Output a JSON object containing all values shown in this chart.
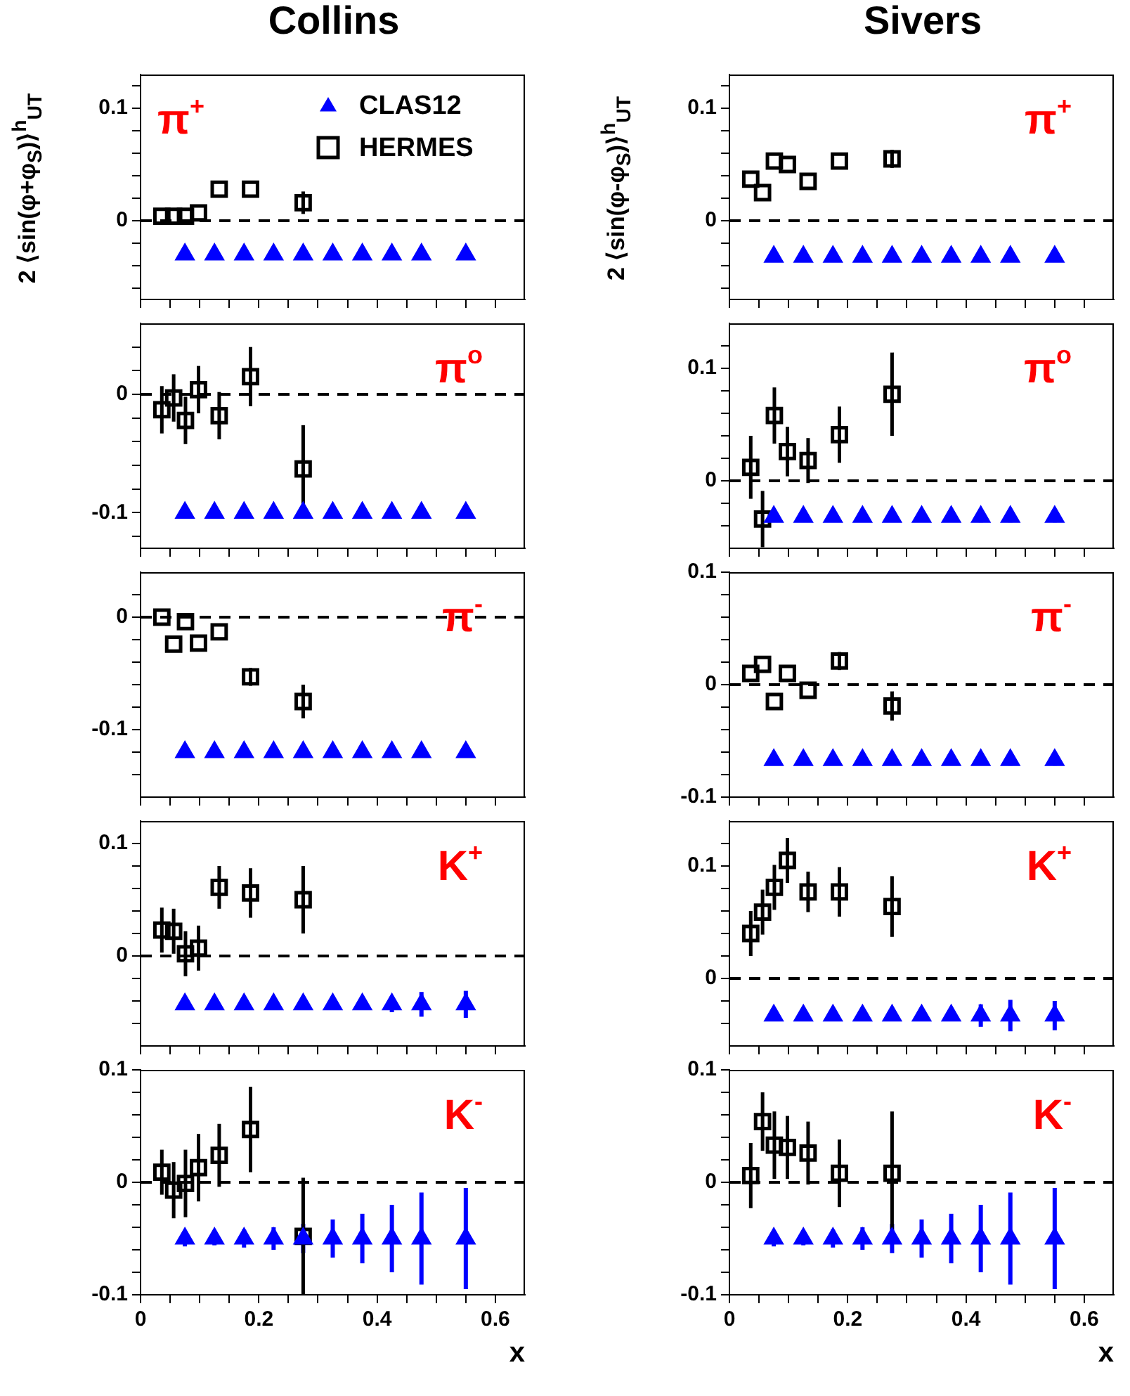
{
  "chart_data": [
    {
      "type": "scatter",
      "title": "Collins",
      "ylabel": "2 ⟨sin(φ+φ$_{S}$)⟩$^{h}$$_{UT}$",
      "legend": "top right",
      "tick_labels": "y",
      "annotations": [
        "π$^{+}$"
      ],
      "xlim": [
        0,
        0.65
      ],
      "xticks": [
        0,
        {
          "value": 0.05,
          "label": null
        },
        {
          "value": 0.1,
          "label": null
        },
        {
          "value": 0.15,
          "label": null
        },
        0.2,
        {
          "value": 0.25,
          "label": null
        },
        {
          "value": 0.3,
          "label": null
        },
        {
          "value": 0.35,
          "label": null
        },
        0.4,
        {
          "value": 0.45,
          "label": null
        },
        {
          "value": 0.5,
          "label": null
        },
        {
          "value": 0.55,
          "label": null
        },
        0.6
      ],
      "ylim": [
        -0.07,
        0.13
      ],
      "yticks": [
        {
          "value": -0.06,
          "label": null
        },
        {
          "value": -0.04,
          "label": null
        },
        {
          "value": -0.02,
          "label": null
        },
        0,
        {
          "value": 0.02,
          "label": null
        },
        {
          "value": 0.04,
          "label": null
        },
        {
          "value": 0.06,
          "label": null
        },
        {
          "value": 0.08,
          "label": null
        },
        0.1,
        {
          "value": 0.12,
          "label": null
        }
      ],
      "ref_lines": [
        {
          "axis": "y",
          "value": 0,
          "line_style": "dashed"
        }
      ],
      "series": [
        {
          "name": "CLAS12",
          "color": "#0000ff",
          "marker": "triangle",
          "x": [
            0.075,
            0.125,
            0.175,
            0.225,
            0.275,
            0.325,
            0.375,
            0.425,
            0.475,
            0.55
          ],
          "values": [
            -0.03,
            -0.03,
            -0.03,
            -0.03,
            -0.03,
            -0.03,
            -0.03,
            -0.03,
            -0.03,
            -0.03
          ]
        },
        {
          "name": "HERMES",
          "color": "#000000",
          "marker": "square",
          "x": [
            0.036,
            0.056,
            0.076,
            0.098,
            0.133,
            0.186,
            0.275
          ],
          "values": [
            0.004,
            0.004,
            0.004,
            0.007,
            0.028,
            0.028,
            0.016
          ],
          "errors": [
            null,
            null,
            null,
            null,
            null,
            null,
            0.01
          ]
        }
      ]
    },
    {
      "type": "scatter",
      "title": "Sivers",
      "ylabel": "2 ⟨sin(φ-φ$_{S}$)⟩$^{h}$$_{UT}$",
      "tick_labels": "y",
      "annotations": [
        "π$^{+}$"
      ],
      "xlim": [
        0,
        0.65
      ],
      "xticks": [
        0,
        {
          "value": 0.05,
          "label": null
        },
        {
          "value": 0.1,
          "label": null
        },
        {
          "value": 0.15,
          "label": null
        },
        0.2,
        {
          "value": 0.25,
          "label": null
        },
        {
          "value": 0.3,
          "label": null
        },
        {
          "value": 0.35,
          "label": null
        },
        0.4,
        {
          "value": 0.45,
          "label": null
        },
        {
          "value": 0.5,
          "label": null
        },
        {
          "value": 0.55,
          "label": null
        },
        0.6
      ],
      "ylim": [
        -0.07,
        0.13
      ],
      "yticks": [
        {
          "value": -0.06,
          "label": null
        },
        {
          "value": -0.04,
          "label": null
        },
        {
          "value": -0.02,
          "label": null
        },
        0,
        {
          "value": 0.02,
          "label": null
        },
        {
          "value": 0.04,
          "label": null
        },
        {
          "value": 0.06,
          "label": null
        },
        {
          "value": 0.08,
          "label": null
        },
        0.1,
        {
          "value": 0.12,
          "label": null
        }
      ],
      "ref_lines": [
        {
          "axis": "y",
          "value": 0,
          "line_style": "dashed"
        }
      ],
      "series": [
        {
          "color": "#0000ff",
          "marker": "triangle",
          "x": [
            0.075,
            0.125,
            0.175,
            0.225,
            0.275,
            0.325,
            0.375,
            0.425,
            0.475,
            0.55
          ],
          "values": [
            -0.032,
            -0.032,
            -0.032,
            -0.032,
            -0.032,
            -0.032,
            -0.032,
            -0.032,
            -0.032,
            -0.032
          ]
        },
        {
          "color": "#000000",
          "marker": "square",
          "x": [
            0.036,
            0.056,
            0.076,
            0.098,
            0.133,
            0.186,
            0.275
          ],
          "values": [
            0.037,
            0.025,
            0.053,
            0.05,
            0.035,
            0.053,
            0.055
          ],
          "errors": [
            null,
            null,
            null,
            null,
            null,
            null,
            0.008
          ]
        }
      ]
    },
    {
      "type": "scatter",
      "tick_labels": "y",
      "annotations": [
        "π$^{o}$"
      ],
      "xlim": [
        0,
        0.65
      ],
      "xticks": [
        0,
        {
          "value": 0.05,
          "label": null
        },
        {
          "value": 0.1,
          "label": null
        },
        {
          "value": 0.15,
          "label": null
        },
        0.2,
        {
          "value": 0.25,
          "label": null
        },
        {
          "value": 0.3,
          "label": null
        },
        {
          "value": 0.35,
          "label": null
        },
        0.4,
        {
          "value": 0.45,
          "label": null
        },
        {
          "value": 0.5,
          "label": null
        },
        {
          "value": 0.55,
          "label": null
        },
        0.6
      ],
      "ylim": [
        -0.13,
        0.06
      ],
      "yticks": [
        {
          "value": -0.12,
          "label": null
        },
        -0.1,
        {
          "value": -0.08,
          "label": null
        },
        {
          "value": -0.06,
          "label": null
        },
        {
          "value": -0.04,
          "label": null
        },
        {
          "value": -0.02,
          "label": null
        },
        0,
        {
          "value": 0.02,
          "label": null
        },
        {
          "value": 0.04,
          "label": null
        }
      ],
      "ref_lines": [
        {
          "axis": "y",
          "value": 0,
          "line_style": "dashed"
        }
      ],
      "series": [
        {
          "color": "#0000ff",
          "marker": "triangle",
          "x": [
            0.075,
            0.125,
            0.175,
            0.225,
            0.275,
            0.325,
            0.375,
            0.425,
            0.475,
            0.55
          ],
          "values": [
            -0.1,
            -0.1,
            -0.1,
            -0.1,
            -0.1,
            -0.1,
            -0.1,
            -0.1,
            -0.1,
            -0.1
          ],
          "errors": [
            null,
            null,
            null,
            null,
            null,
            null,
            null,
            0.004,
            0.005,
            0.004
          ]
        },
        {
          "color": "#000000",
          "marker": "square",
          "x": [
            0.036,
            0.056,
            0.076,
            0.098,
            0.133,
            0.186,
            0.275
          ],
          "values": [
            -0.013,
            -0.003,
            -0.022,
            0.004,
            -0.018,
            0.015,
            -0.063
          ],
          "errors": [
            0.02,
            0.02,
            0.02,
            0.02,
            0.02,
            0.025,
            0.037
          ]
        }
      ]
    },
    {
      "type": "scatter",
      "tick_labels": "y",
      "annotations": [
        "π$^{o}$"
      ],
      "xlim": [
        0,
        0.65
      ],
      "xticks": [
        0,
        {
          "value": 0.05,
          "label": null
        },
        {
          "value": 0.1,
          "label": null
        },
        {
          "value": 0.15,
          "label": null
        },
        0.2,
        {
          "value": 0.25,
          "label": null
        },
        {
          "value": 0.3,
          "label": null
        },
        {
          "value": 0.35,
          "label": null
        },
        0.4,
        {
          "value": 0.45,
          "label": null
        },
        {
          "value": 0.5,
          "label": null
        },
        {
          "value": 0.55,
          "label": null
        },
        0.6
      ],
      "ylim": [
        -0.06,
        0.14
      ],
      "yticks": [
        {
          "value": -0.04,
          "label": null
        },
        {
          "value": -0.02,
          "label": null
        },
        0,
        {
          "value": 0.02,
          "label": null
        },
        {
          "value": 0.04,
          "label": null
        },
        {
          "value": 0.06,
          "label": null
        },
        {
          "value": 0.08,
          "label": null
        },
        0.1,
        {
          "value": 0.12,
          "label": null
        }
      ],
      "ref_lines": [
        {
          "axis": "y",
          "value": 0,
          "line_style": "dashed"
        }
      ],
      "series": [
        {
          "color": "#0000ff",
          "marker": "triangle",
          "x": [
            0.075,
            0.125,
            0.175,
            0.225,
            0.275,
            0.325,
            0.375,
            0.425,
            0.475,
            0.55
          ],
          "values": [
            -0.032,
            -0.032,
            -0.032,
            -0.032,
            -0.032,
            -0.032,
            -0.032,
            -0.032,
            -0.032,
            -0.032
          ],
          "errors": [
            null,
            null,
            null,
            null,
            null,
            null,
            null,
            0.005,
            0.005,
            0.005
          ]
        },
        {
          "color": "#000000",
          "marker": "square",
          "x": [
            0.036,
            0.056,
            0.076,
            0.098,
            0.133,
            0.186,
            0.275
          ],
          "values": [
            0.012,
            -0.034,
            0.058,
            0.026,
            0.018,
            0.041,
            0.077
          ],
          "errors": [
            0.028,
            0.025,
            0.025,
            0.022,
            0.02,
            0.025,
            0.037
          ]
        }
      ]
    },
    {
      "type": "scatter",
      "tick_labels": "y",
      "annotations": [
        "π$^{-}$"
      ],
      "xlim": [
        0,
        0.65
      ],
      "xticks": [
        0,
        {
          "value": 0.05,
          "label": null
        },
        {
          "value": 0.1,
          "label": null
        },
        {
          "value": 0.15,
          "label": null
        },
        0.2,
        {
          "value": 0.25,
          "label": null
        },
        {
          "value": 0.3,
          "label": null
        },
        {
          "value": 0.35,
          "label": null
        },
        0.4,
        {
          "value": 0.45,
          "label": null
        },
        {
          "value": 0.5,
          "label": null
        },
        {
          "value": 0.55,
          "label": null
        },
        0.6
      ],
      "ylim": [
        -0.16,
        0.04
      ],
      "yticks": [
        {
          "value": -0.14,
          "label": null
        },
        {
          "value": -0.12,
          "label": null
        },
        -0.1,
        {
          "value": -0.08,
          "label": null
        },
        {
          "value": -0.06,
          "label": null
        },
        {
          "value": -0.04,
          "label": null
        },
        {
          "value": -0.02,
          "label": null
        },
        0,
        {
          "value": 0.02,
          "label": null
        }
      ],
      "ref_lines": [
        {
          "axis": "y",
          "value": 0,
          "line_style": "dashed"
        }
      ],
      "series": [
        {
          "color": "#0000ff",
          "marker": "triangle",
          "x": [
            0.075,
            0.125,
            0.175,
            0.225,
            0.275,
            0.325,
            0.375,
            0.425,
            0.475,
            0.55
          ],
          "values": [
            -0.12,
            -0.12,
            -0.12,
            -0.12,
            -0.12,
            -0.12,
            -0.12,
            -0.12,
            -0.12,
            -0.12
          ],
          "errors": [
            null,
            null,
            null,
            null,
            null,
            null,
            null,
            null,
            0.004,
            null
          ]
        },
        {
          "color": "#000000",
          "marker": "square",
          "x": [
            0.036,
            0.056,
            0.076,
            0.098,
            0.133,
            0.186,
            0.275
          ],
          "values": [
            0,
            -0.024,
            -0.004,
            -0.023,
            -0.013,
            -0.053,
            -0.075
          ],
          "errors": [
            null,
            null,
            null,
            null,
            null,
            0.008,
            0.015
          ]
        }
      ]
    },
    {
      "type": "scatter",
      "tick_labels": "y",
      "annotations": [
        "π$^{-}$"
      ],
      "xlim": [
        0,
        0.65
      ],
      "xticks": [
        0,
        {
          "value": 0.05,
          "label": null
        },
        {
          "value": 0.1,
          "label": null
        },
        {
          "value": 0.15,
          "label": null
        },
        0.2,
        {
          "value": 0.25,
          "label": null
        },
        {
          "value": 0.3,
          "label": null
        },
        {
          "value": 0.35,
          "label": null
        },
        0.4,
        {
          "value": 0.45,
          "label": null
        },
        {
          "value": 0.5,
          "label": null
        },
        {
          "value": 0.55,
          "label": null
        },
        0.6
      ],
      "ylim": [
        -0.1,
        0.1
      ],
      "yticks": [
        -0.1,
        {
          "value": -0.08,
          "label": null
        },
        {
          "value": -0.06,
          "label": null
        },
        {
          "value": -0.04,
          "label": null
        },
        {
          "value": -0.02,
          "label": null
        },
        0,
        {
          "value": 0.02,
          "label": null
        },
        {
          "value": 0.04,
          "label": null
        },
        {
          "value": 0.06,
          "label": null
        },
        {
          "value": 0.08,
          "label": null
        },
        0.1
      ],
      "ref_lines": [
        {
          "axis": "y",
          "value": 0,
          "line_style": "dashed"
        }
      ],
      "series": [
        {
          "color": "#0000ff",
          "marker": "triangle",
          "x": [
            0.075,
            0.125,
            0.175,
            0.225,
            0.275,
            0.325,
            0.375,
            0.425,
            0.475,
            0.55
          ],
          "values": [
            -0.067,
            -0.067,
            -0.067,
            -0.067,
            -0.067,
            -0.067,
            -0.067,
            -0.067,
            -0.067,
            -0.067
          ],
          "errors": [
            null,
            null,
            null,
            null,
            null,
            null,
            null,
            null,
            0.005,
            0.005
          ]
        },
        {
          "color": "#000000",
          "marker": "square",
          "x": [
            0.036,
            0.056,
            0.076,
            0.098,
            0.133,
            0.186,
            0.275
          ],
          "values": [
            0.01,
            0.018,
            -0.015,
            0.01,
            -0.005,
            0.021,
            -0.019
          ],
          "errors": [
            null,
            null,
            null,
            null,
            null,
            0.008,
            0.013
          ]
        }
      ]
    },
    {
      "type": "scatter",
      "tick_labels": "y",
      "annotations": [
        "K$^{+}$"
      ],
      "xlim": [
        0,
        0.65
      ],
      "xticks": [
        0,
        {
          "value": 0.05,
          "label": null
        },
        {
          "value": 0.1,
          "label": null
        },
        {
          "value": 0.15,
          "label": null
        },
        0.2,
        {
          "value": 0.25,
          "label": null
        },
        {
          "value": 0.3,
          "label": null
        },
        {
          "value": 0.35,
          "label": null
        },
        0.4,
        {
          "value": 0.45,
          "label": null
        },
        {
          "value": 0.5,
          "label": null
        },
        {
          "value": 0.55,
          "label": null
        },
        0.6
      ],
      "ylim": [
        -0.08,
        0.12
      ],
      "yticks": [
        {
          "value": -0.06,
          "label": null
        },
        {
          "value": -0.04,
          "label": null
        },
        {
          "value": -0.02,
          "label": null
        },
        0,
        {
          "value": 0.02,
          "label": null
        },
        {
          "value": 0.04,
          "label": null
        },
        {
          "value": 0.06,
          "label": null
        },
        {
          "value": 0.08,
          "label": null
        },
        0.1
      ],
      "ref_lines": [
        {
          "axis": "y",
          "value": 0,
          "line_style": "dashed"
        }
      ],
      "series": [
        {
          "color": "#0000ff",
          "marker": "triangle",
          "x": [
            0.075,
            0.125,
            0.175,
            0.225,
            0.275,
            0.325,
            0.375,
            0.425,
            0.475,
            0.55
          ],
          "values": [
            -0.043,
            -0.043,
            -0.043,
            -0.043,
            -0.043,
            -0.043,
            -0.043,
            -0.043,
            -0.043,
            -0.043
          ],
          "errors": [
            null,
            null,
            null,
            null,
            null,
            null,
            0.004,
            0.007,
            0.011,
            0.012
          ]
        },
        {
          "color": "#000000",
          "marker": "square",
          "x": [
            0.036,
            0.056,
            0.076,
            0.098,
            0.133,
            0.186,
            0.275
          ],
          "values": [
            0.023,
            0.022,
            0.002,
            0.007,
            0.061,
            0.056,
            0.05
          ],
          "errors": [
            0.02,
            0.02,
            0.02,
            0.02,
            0.019,
            0.022,
            0.03
          ]
        }
      ]
    },
    {
      "type": "scatter",
      "tick_labels": "y",
      "annotations": [
        "K$^{+}$"
      ],
      "xlim": [
        0,
        0.65
      ],
      "xticks": [
        0,
        {
          "value": 0.05,
          "label": null
        },
        {
          "value": 0.1,
          "label": null
        },
        {
          "value": 0.15,
          "label": null
        },
        0.2,
        {
          "value": 0.25,
          "label": null
        },
        {
          "value": 0.3,
          "label": null
        },
        {
          "value": 0.35,
          "label": null
        },
        0.4,
        {
          "value": 0.45,
          "label": null
        },
        {
          "value": 0.5,
          "label": null
        },
        {
          "value": 0.55,
          "label": null
        },
        0.6
      ],
      "ylim": [
        -0.06,
        0.14
      ],
      "yticks": [
        {
          "value": -0.04,
          "label": null
        },
        {
          "value": -0.02,
          "label": null
        },
        0,
        {
          "value": 0.02,
          "label": null
        },
        {
          "value": 0.04,
          "label": null
        },
        {
          "value": 0.06,
          "label": null
        },
        {
          "value": 0.08,
          "label": null
        },
        0.1,
        {
          "value": 0.12,
          "label": null
        }
      ],
      "ref_lines": [
        {
          "axis": "y",
          "value": 0,
          "line_style": "dashed"
        }
      ],
      "series": [
        {
          "color": "#0000ff",
          "marker": "triangle",
          "x": [
            0.075,
            0.125,
            0.175,
            0.225,
            0.275,
            0.325,
            0.375,
            0.425,
            0.475,
            0.55
          ],
          "values": [
            -0.033,
            -0.033,
            -0.033,
            -0.033,
            -0.033,
            -0.033,
            -0.033,
            -0.033,
            -0.033,
            -0.033
          ],
          "errors": [
            null,
            null,
            null,
            null,
            null,
            null,
            0.005,
            0.01,
            0.014,
            0.013
          ]
        },
        {
          "color": "#000000",
          "marker": "square",
          "x": [
            0.036,
            0.056,
            0.076,
            0.098,
            0.133,
            0.186,
            0.275
          ],
          "values": [
            0.04,
            0.059,
            0.081,
            0.105,
            0.077,
            0.077,
            0.064
          ],
          "errors": [
            0.02,
            0.02,
            0.02,
            0.02,
            0.018,
            0.022,
            0.027
          ]
        }
      ]
    },
    {
      "type": "scatter",
      "xlabel": "x",
      "annotations": [
        "K$^{-}$"
      ],
      "xlim": [
        0,
        0.65
      ],
      "xticks": [
        0,
        {
          "value": 0.05,
          "label": null
        },
        {
          "value": 0.1,
          "label": null
        },
        {
          "value": 0.15,
          "label": null
        },
        0.2,
        {
          "value": 0.25,
          "label": null
        },
        {
          "value": 0.3,
          "label": null
        },
        {
          "value": 0.35,
          "label": null
        },
        0.4,
        {
          "value": 0.45,
          "label": null
        },
        {
          "value": 0.5,
          "label": null
        },
        {
          "value": 0.55,
          "label": null
        },
        0.6
      ],
      "ylim": [
        -0.1,
        0.1
      ],
      "yticks": [
        -0.1,
        {
          "value": -0.08,
          "label": null
        },
        {
          "value": -0.06,
          "label": null
        },
        {
          "value": -0.04,
          "label": null
        },
        {
          "value": -0.02,
          "label": null
        },
        0,
        {
          "value": 0.02,
          "label": null
        },
        {
          "value": 0.04,
          "label": null
        },
        {
          "value": 0.06,
          "label": null
        },
        {
          "value": 0.08,
          "label": null
        },
        0.1
      ],
      "ref_lines": [
        {
          "axis": "y",
          "value": 0,
          "line_style": "dashed"
        }
      ],
      "series": [
        {
          "color": "#0000ff",
          "marker": "triangle",
          "x": [
            0.075,
            0.125,
            0.175,
            0.225,
            0.275,
            0.325,
            0.375,
            0.425,
            0.475,
            0.55
          ],
          "values": [
            -0.05,
            -0.05,
            -0.05,
            -0.05,
            -0.05,
            -0.05,
            -0.05,
            -0.05,
            -0.05,
            -0.05
          ],
          "errors": [
            0.007,
            0.006,
            0.008,
            0.01,
            0.013,
            0.017,
            0.022,
            0.03,
            0.041,
            0.045
          ]
        },
        {
          "color": "#000000",
          "marker": "square",
          "x": [
            0.036,
            0.056,
            0.076,
            0.098,
            0.133,
            0.186,
            0.275
          ],
          "values": [
            0.009,
            -0.007,
            -0.001,
            0.013,
            0.024,
            0.047,
            -0.048
          ],
          "errors": [
            0.02,
            0.025,
            0.03,
            0.03,
            0.028,
            0.038,
            0.052
          ]
        }
      ]
    },
    {
      "type": "scatter",
      "xlabel": "x",
      "annotations": [
        "K$^{-}$"
      ],
      "xlim": [
        0,
        0.65
      ],
      "xticks": [
        0,
        {
          "value": 0.05,
          "label": null
        },
        {
          "value": 0.1,
          "label": null
        },
        {
          "value": 0.15,
          "label": null
        },
        0.2,
        {
          "value": 0.25,
          "label": null
        },
        {
          "value": 0.3,
          "label": null
        },
        {
          "value": 0.35,
          "label": null
        },
        0.4,
        {
          "value": 0.45,
          "label": null
        },
        {
          "value": 0.5,
          "label": null
        },
        {
          "value": 0.55,
          "label": null
        },
        0.6
      ],
      "ylim": [
        -0.1,
        0.1
      ],
      "yticks": [
        -0.1,
        {
          "value": -0.08,
          "label": null
        },
        {
          "value": -0.06,
          "label": null
        },
        {
          "value": -0.04,
          "label": null
        },
        {
          "value": -0.02,
          "label": null
        },
        0,
        {
          "value": 0.02,
          "label": null
        },
        {
          "value": 0.04,
          "label": null
        },
        {
          "value": 0.06,
          "label": null
        },
        {
          "value": 0.08,
          "label": null
        },
        0.1
      ],
      "ref_lines": [
        {
          "axis": "y",
          "value": 0,
          "line_style": "dashed"
        }
      ],
      "series": [
        {
          "color": "#0000ff",
          "marker": "triangle",
          "x": [
            0.075,
            0.125,
            0.175,
            0.225,
            0.275,
            0.325,
            0.375,
            0.425,
            0.475,
            0.55
          ],
          "values": [
            -0.05,
            -0.05,
            -0.05,
            -0.05,
            -0.05,
            -0.05,
            -0.05,
            -0.05,
            -0.05,
            -0.05
          ],
          "errors": [
            0.007,
            0.006,
            0.008,
            0.01,
            0.013,
            0.017,
            0.022,
            0.03,
            0.041,
            0.045
          ]
        },
        {
          "color": "#000000",
          "marker": "square",
          "x": [
            0.036,
            0.056,
            0.076,
            0.098,
            0.133,
            0.186,
            0.275
          ],
          "values": [
            0.006,
            0.054,
            0.033,
            0.031,
            0.026,
            0.008,
            0.008
          ],
          "errors": [
            0.029,
            0.026,
            0.03,
            0.028,
            0.028,
            0.03,
            0.055
          ]
        }
      ]
    }
  ]
}
